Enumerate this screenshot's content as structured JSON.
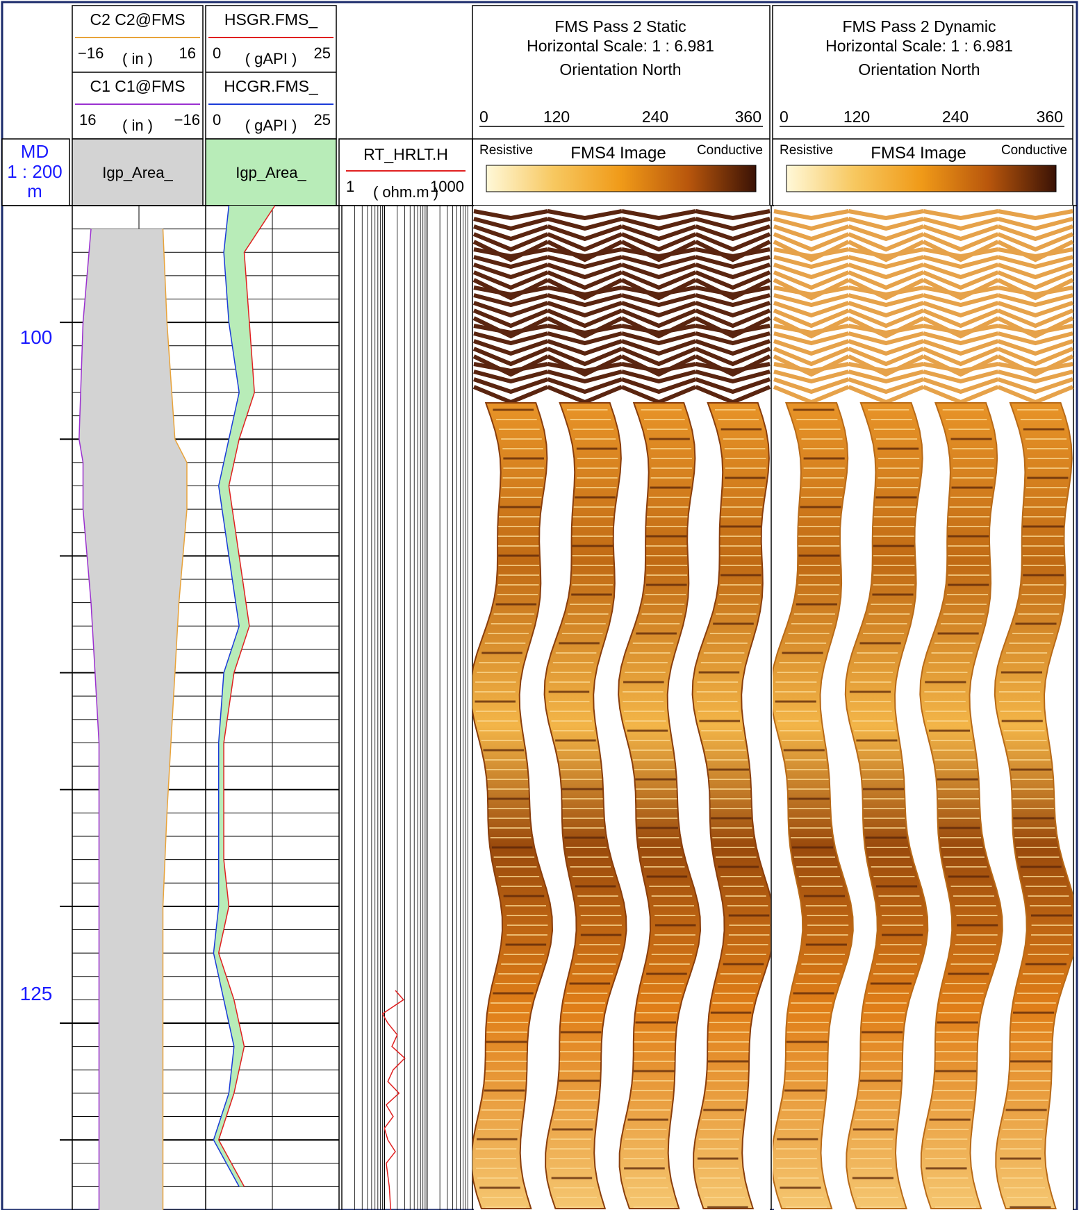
{
  "depth_track": {
    "title": "MD",
    "scale": "1 : 200",
    "unit": "m",
    "labels": [
      "100",
      "125"
    ]
  },
  "track1": {
    "curve_top": {
      "name": "C2 C2@FMS",
      "min": "−16",
      "unit": "( in )",
      "max": "16",
      "color": "#e8a33a"
    },
    "curve_bottom": {
      "name": "C1 C1@FMS",
      "min": "16",
      "unit": "( in )",
      "max": "−16",
      "color": "#9b30d0"
    },
    "area_label": "Igp_Area_",
    "area_color": "#d3d3d3"
  },
  "track2": {
    "curve_top": {
      "name": "HSGR.FMS_",
      "min": "0",
      "unit": "( gAPI )",
      "max": "25",
      "color": "#e02020"
    },
    "curve_bottom": {
      "name": "HCGR.FMS_",
      "min": "0",
      "unit": "( gAPI )",
      "max": "25",
      "color": "#1a3ad8"
    },
    "area_label": "Igp_Area_",
    "area_color": "#b8ecb8"
  },
  "track3": {
    "curve": {
      "name": "RT_HRLT.H",
      "min": "1",
      "unit": "( ohm.m )",
      "max": "1000",
      "color": "#e02020"
    }
  },
  "image_static": {
    "title1": "FMS Pass 2 Static",
    "title2": "Horizontal Scale: 1 : 6.981",
    "title3": "Orientation North",
    "ticks": [
      "0",
      "120",
      "240",
      "360"
    ],
    "left_label": "Resistive",
    "center_label": "FMS4  Image",
    "right_label": "Conductive"
  },
  "image_dynamic": {
    "title1": "FMS Pass 2 Dynamic",
    "title2": "Horizontal Scale: 1 : 6.981",
    "title3": "Orientation North",
    "ticks": [
      "0",
      "120",
      "240",
      "360"
    ],
    "left_label": "Resistive",
    "center_label": "FMS4  Image",
    "right_label": "Conductive"
  },
  "colors": {
    "frame": "#1a2a6a",
    "resistive": "#fff8d8",
    "mid": "#f0a020",
    "conductive": "#3a1205",
    "static_top": "#5a2510"
  },
  "chart_data": {
    "type": "line",
    "depth_range_m": [
      90,
      133
    ],
    "depth_ticks": [
      100,
      125
    ],
    "series": [
      {
        "name": "C2 C2@FMS",
        "unit": "in",
        "range": [
          -16,
          16
        ],
        "x": [
          91,
          95,
          100,
          101,
          103,
          105,
          107,
          110,
          113,
          116,
          120,
          123,
          126,
          130,
          133
        ],
        "y": [
          6,
          7,
          9,
          12,
          12,
          11,
          10,
          9,
          8,
          7,
          6,
          6,
          6,
          6,
          6
        ]
      },
      {
        "name": "C1 C1@FMS",
        "unit": "in",
        "range": [
          16,
          -16
        ],
        "x": [
          91,
          95,
          100,
          101,
          103,
          105,
          107,
          110,
          113,
          116,
          120,
          123,
          126,
          130,
          133
        ],
        "y": [
          12,
          14,
          15,
          14,
          14,
          13,
          12,
          11,
          10,
          10,
          10,
          10,
          10,
          10,
          10
        ]
      },
      {
        "name": "HSGR.FMS_",
        "unit": "gAPI",
        "range": [
          0,
          25
        ],
        "x": [
          90,
          92,
          95,
          98,
          100,
          102,
          105,
          108,
          110,
          113,
          116,
          118,
          120,
          122,
          124,
          126,
          128,
          130,
          132
        ],
        "y": [
          13,
          7,
          8,
          9,
          6,
          4,
          6,
          8,
          5,
          3,
          3,
          3,
          4,
          2,
          5,
          7,
          5,
          2,
          7
        ]
      },
      {
        "name": "HCGR.FMS_",
        "unit": "gAPI",
        "range": [
          0,
          25
        ],
        "x": [
          90,
          92,
          95,
          98,
          100,
          102,
          105,
          108,
          110,
          113,
          116,
          118,
          120,
          122,
          124,
          126,
          128,
          130,
          132
        ],
        "y": [
          4,
          3,
          4,
          6,
          4,
          2,
          4,
          6,
          3,
          2,
          2,
          2,
          2,
          1,
          3,
          5,
          4,
          1,
          6
        ]
      },
      {
        "name": "RT_HRLT.H",
        "unit": "ohm.m",
        "range": [
          1,
          1000
        ],
        "scale": "log",
        "x": [
          123.6,
          124,
          124.6,
          125,
          125.5,
          126,
          126.5,
          127,
          127.5,
          128,
          128.5,
          129,
          129.5,
          130,
          130.5,
          131,
          132,
          133
        ],
        "y": [
          18,
          28,
          9,
          12,
          20,
          15,
          30,
          16,
          12,
          22,
          11,
          16,
          10,
          12,
          18,
          11,
          13,
          14
        ]
      }
    ]
  }
}
